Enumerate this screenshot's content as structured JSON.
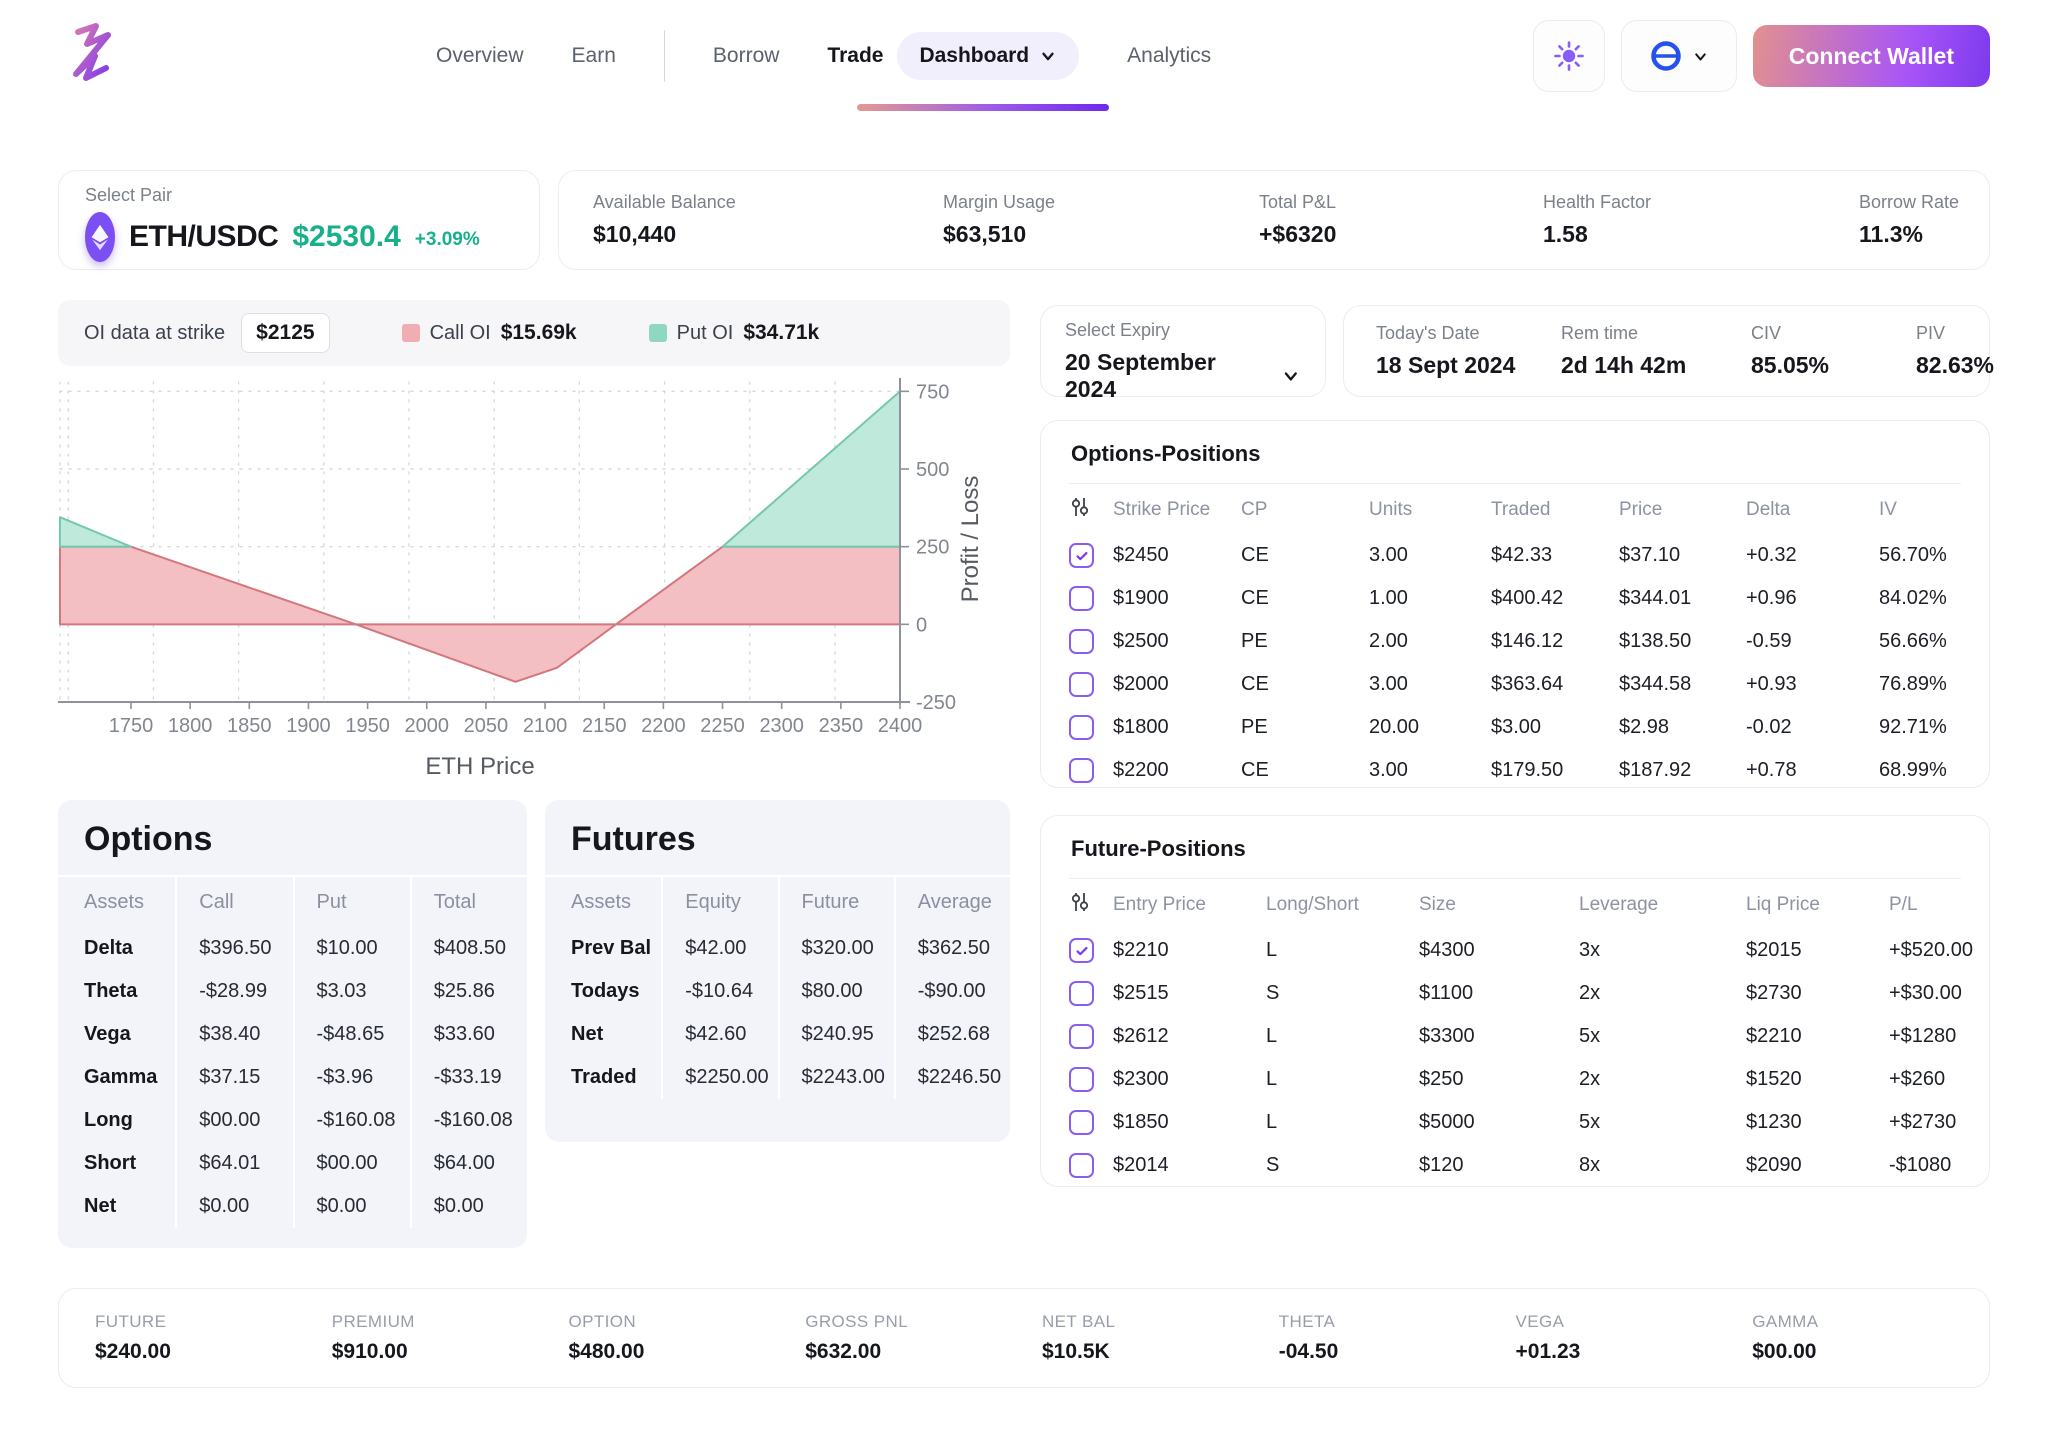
{
  "nav": {
    "items": [
      "Overview",
      "Earn",
      "Borrow"
    ],
    "trade_label": "Trade",
    "trade_dropdown": "Dashboard",
    "analytics": "Analytics",
    "connect_wallet": "Connect Wallet"
  },
  "pair": {
    "label": "Select Pair",
    "name": "ETH/USDC",
    "price": "$2530.4",
    "change": "+3.09%"
  },
  "account_stats": [
    {
      "label": "Available Balance",
      "value": "$10,440"
    },
    {
      "label": "Margin Usage",
      "value": "$63,510"
    },
    {
      "label": "Total P&L",
      "value": "+$6320"
    },
    {
      "label": "Health Factor",
      "value": "1.58"
    },
    {
      "label": "Borrow Rate",
      "value": "11.3%"
    }
  ],
  "oi_bar": {
    "prefix": "OI data at strike",
    "strike": "$2125",
    "call_label": "Call OI",
    "call_value": "$15.69k",
    "call_color": "#f0aeb2",
    "put_label": "Put OI",
    "put_value": "$34.71k",
    "put_color": "#8fd8bf"
  },
  "expiry": {
    "label": "Select Expiry",
    "value": "20 September 2024"
  },
  "expiry_stats": [
    {
      "label": "Today's Date",
      "value": "18 Sept 2024"
    },
    {
      "label": "Rem time",
      "value": "2d 14h 42m"
    },
    {
      "label": "CIV",
      "value": "85.05%"
    },
    {
      "label": "PIV",
      "value": "82.63%"
    }
  ],
  "chart_data": {
    "type": "area",
    "xlabel": "ETH Price",
    "ylabel": "Profit / Loss",
    "xlim": [
      1690,
      2400
    ],
    "ylim": [
      -250,
      780
    ],
    "x_ticks": [
      1750,
      1800,
      1850,
      1900,
      1950,
      2000,
      2050,
      2100,
      2150,
      2200,
      2250,
      2300,
      2350,
      2400
    ],
    "y_ticks": [
      750,
      500,
      250,
      0,
      -250
    ],
    "grid_x": [
      1697,
      1769,
      1841,
      1913,
      1985,
      2057,
      2129,
      2201,
      2273,
      2345
    ],
    "profit_cap": 250,
    "payoff_points": [
      [
        1690,
        345
      ],
      [
        1750,
        250
      ],
      [
        1940,
        0
      ],
      [
        2075,
        -185
      ],
      [
        2110,
        -140
      ],
      [
        2160,
        0
      ],
      [
        2250,
        250
      ],
      [
        2400,
        750
      ]
    ],
    "areas": [
      {
        "name": "loss-band-left",
        "fill": "#f3bfc3",
        "stroke": "#d4767d",
        "points": [
          [
            1690,
            0
          ],
          [
            1690,
            250
          ],
          [
            1750,
            250
          ],
          [
            1940,
            0
          ]
        ]
      },
      {
        "name": "loss-dip",
        "fill": "#f3bfc3",
        "stroke": "#d4767d",
        "points": [
          [
            1940,
            0
          ],
          [
            2075,
            -185
          ],
          [
            2110,
            -140
          ],
          [
            2160,
            0
          ]
        ]
      },
      {
        "name": "loss-band-right",
        "fill": "#f3bfc3",
        "stroke": "#d4767d",
        "points": [
          [
            2160,
            0
          ],
          [
            2250,
            250
          ],
          [
            2400,
            250
          ],
          [
            2400,
            0
          ]
        ]
      },
      {
        "name": "profit-left",
        "fill": "#bfe9da",
        "stroke": "#74c7b0",
        "points": [
          [
            1690,
            250
          ],
          [
            1690,
            345
          ],
          [
            1750,
            250
          ]
        ]
      },
      {
        "name": "profit-right",
        "fill": "#bfe9da",
        "stroke": "#74c7b0",
        "points": [
          [
            2250,
            250
          ],
          [
            2400,
            750
          ],
          [
            2400,
            250
          ]
        ]
      }
    ]
  },
  "options_positions": {
    "title": "Options-Positions",
    "columns": [
      "Strike Price",
      "CP",
      "Units",
      "Traded",
      "Price",
      "Delta",
      "IV"
    ],
    "rows": [
      {
        "checked": true,
        "cells": [
          "$2450",
          "CE",
          "3.00",
          "$42.33",
          "$37.10",
          "+0.32",
          "56.70%"
        ]
      },
      {
        "checked": false,
        "cells": [
          "$1900",
          "CE",
          "1.00",
          "$400.42",
          "$344.01",
          "+0.96",
          "84.02%"
        ]
      },
      {
        "checked": false,
        "cells": [
          "$2500",
          "PE",
          "2.00",
          "$146.12",
          "$138.50",
          "-0.59",
          "56.66%"
        ]
      },
      {
        "checked": false,
        "cells": [
          "$2000",
          "CE",
          "3.00",
          "$363.64",
          "$344.58",
          "+0.93",
          "76.89%"
        ]
      },
      {
        "checked": false,
        "cells": [
          "$1800",
          "PE",
          "20.00",
          "$3.00",
          "$2.98",
          "-0.02",
          "92.71%"
        ]
      },
      {
        "checked": false,
        "cells": [
          "$2200",
          "CE",
          "3.00",
          "$179.50",
          "$187.92",
          "+0.78",
          "68.99%"
        ]
      }
    ]
  },
  "future_positions": {
    "title": "Future-Positions",
    "columns": [
      "Entry Price",
      "Long/Short",
      "Size",
      "Leverage",
      "Liq Price",
      "P/L"
    ],
    "rows": [
      {
        "checked": true,
        "cells": [
          "$2210",
          "L",
          "$4300",
          "3x",
          "$2015",
          "+$520.00"
        ]
      },
      {
        "checked": false,
        "cells": [
          "$2515",
          "S",
          "$1100",
          "2x",
          "$2730",
          "+$30.00"
        ]
      },
      {
        "checked": false,
        "cells": [
          "$2612",
          "L",
          "$3300",
          "5x",
          "$2210",
          "+$1280"
        ]
      },
      {
        "checked": false,
        "cells": [
          "$2300",
          "L",
          "$250",
          "2x",
          "$1520",
          "+$260"
        ]
      },
      {
        "checked": false,
        "cells": [
          "$1850",
          "L",
          "$5000",
          "5x",
          "$1230",
          "+$2730"
        ]
      },
      {
        "checked": false,
        "cells": [
          "$2014",
          "S",
          "$120",
          "8x",
          "$2090",
          "-$1080"
        ]
      }
    ]
  },
  "options_summary": {
    "title": "Options",
    "columns": [
      "Assets",
      "Call",
      "Put",
      "Total"
    ],
    "rows": [
      [
        "Delta",
        "$396.50",
        "$10.00",
        "$408.50"
      ],
      [
        "Theta",
        "-$28.99",
        "$3.03",
        "$25.86"
      ],
      [
        "Vega",
        "$38.40",
        "-$48.65",
        "$33.60"
      ],
      [
        "Gamma",
        "$37.15",
        "-$3.96",
        "-$33.19"
      ],
      [
        "Long",
        "$00.00",
        "-$160.08",
        "-$160.08"
      ],
      [
        "Short",
        "$64.01",
        "$00.00",
        "$64.00"
      ],
      [
        "Net",
        "$0.00",
        "$0.00",
        "$0.00"
      ]
    ]
  },
  "futures_summary": {
    "title": "Futures",
    "columns": [
      "Assets",
      "Equity",
      "Future",
      "Average"
    ],
    "rows": [
      [
        "Prev Bal",
        "$42.00",
        "$320.00",
        "$362.50"
      ],
      [
        "Todays",
        "-$10.64",
        "$80.00",
        "-$90.00"
      ],
      [
        "Net",
        "$42.60",
        "$240.95",
        "$252.68"
      ],
      [
        "Traded",
        "$2250.00",
        "$2243.00",
        "$2246.50"
      ]
    ]
  },
  "bottom_stats": [
    {
      "label": "FUTURE",
      "value": "$240.00"
    },
    {
      "label": "PREMIUM",
      "value": "$910.00"
    },
    {
      "label": "OPTION",
      "value": "$480.00"
    },
    {
      "label": "GROSS PNL",
      "value": "$632.00"
    },
    {
      "label": "NET BAL",
      "value": "$10.5K"
    },
    {
      "label": "THETA",
      "value": "-04.50"
    },
    {
      "label": "VEGA",
      "value": "+01.23"
    },
    {
      "label": "GAMMA",
      "value": "$00.00"
    }
  ]
}
